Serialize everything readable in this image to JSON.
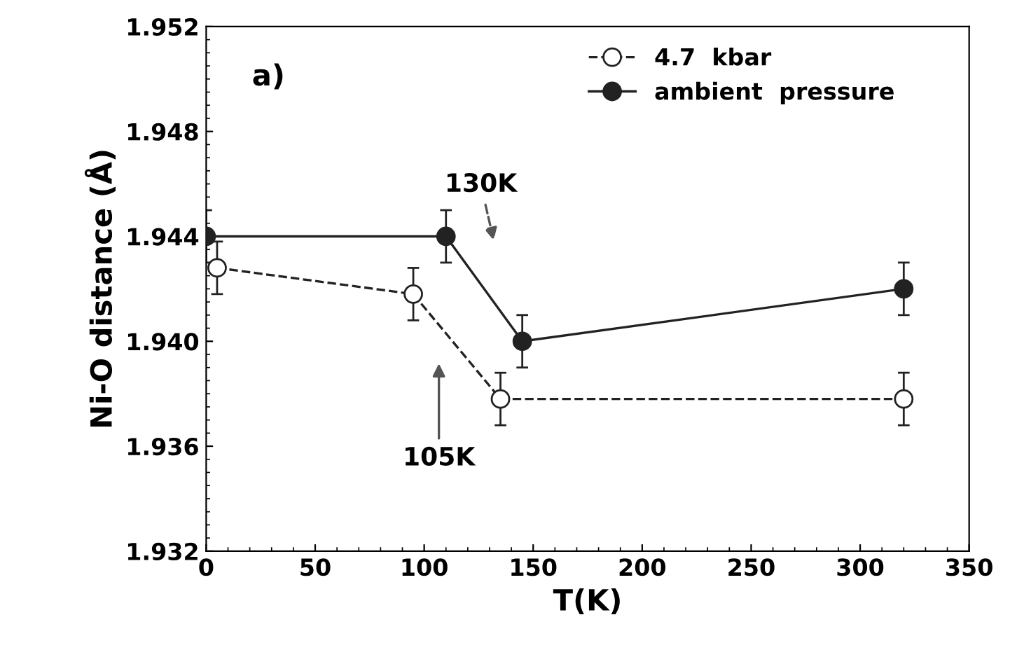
{
  "chart_data": {
    "type": "line",
    "xlabel": "T(K)",
    "ylabel": "Ni-O distance (Å)",
    "xlim": [
      0,
      350
    ],
    "xticks": [
      0,
      50,
      100,
      150,
      200,
      250,
      300,
      350
    ],
    "ylim": [
      1.932,
      1.952
    ],
    "yticks": [
      1.932,
      1.936,
      {
        "value": 1.94,
        "label": "1.940"
      },
      1.944,
      1.948,
      1.952
    ],
    "grid": false,
    "legend": "top right",
    "series": [
      {
        "name": "4.7  kbar",
        "color": "#222222",
        "marker": "circle",
        "line_style": "dashed",
        "x": [
          5,
          95,
          135,
          320
        ],
        "values": [
          1.9428,
          1.9418,
          1.9378,
          1.9378
        ],
        "errors": [
          0.001,
          0.001,
          0.001,
          0.001
        ]
      },
      {
        "name": "ambient  pressure",
        "color": "#222222",
        "marker": "circle",
        "line_style": "solid",
        "x": [
          0,
          110,
          145,
          320
        ],
        "values": [
          1.944,
          1.944,
          1.94,
          1.942
        ],
        "errors": [
          0.001,
          0.001,
          0.001,
          0.001
        ]
      }
    ],
    "annotations": [
      "a)",
      "130K",
      "105K"
    ]
  }
}
